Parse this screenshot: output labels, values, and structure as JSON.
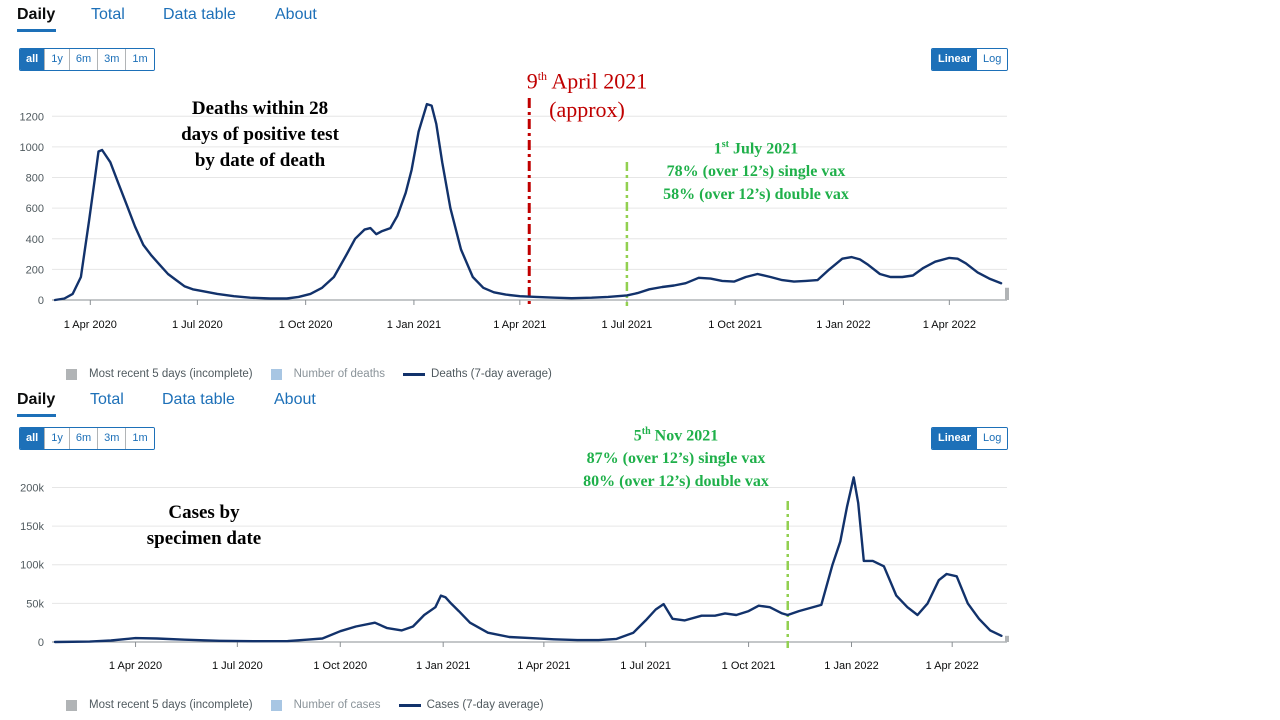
{
  "charts": [
    {
      "tabs": [
        "Daily",
        "Total",
        "Data table",
        "About"
      ],
      "active_tab": "Daily",
      "range_buttons": [
        "all",
        "1y",
        "6m",
        "3m",
        "1m"
      ],
      "active_range": "all",
      "scale_buttons": [
        "Linear",
        "Log"
      ],
      "active_scale": "Linear",
      "legend": [
        "Most recent 5 days (incomplete)",
        "Number of deaths",
        "Deaths (7-day average)"
      ],
      "annotation_title": [
        "Deaths within  28",
        "days of positive test",
        "by date of death"
      ],
      "annotation_red": {
        "day": "9",
        "suffix": "th",
        "rest": " April 2021",
        "line2": "(approx)"
      },
      "annotation_green": {
        "day": "1",
        "suffix": "st",
        "rest": " July 2021",
        "line2": "78% (over 12’s) single vax",
        "line3": "58% (over 12’s) double vax"
      }
    },
    {
      "tabs": [
        "Daily",
        "Total",
        "Data table",
        "About"
      ],
      "active_tab": "Daily",
      "range_buttons": [
        "all",
        "1y",
        "6m",
        "3m",
        "1m"
      ],
      "active_range": "all",
      "scale_buttons": [
        "Linear",
        "Log"
      ],
      "active_scale": "Linear",
      "legend": [
        "Most recent 5 days (incomplete)",
        "Number of cases",
        "Cases (7-day average)"
      ],
      "annotation_title": [
        "Cases by",
        "specimen date"
      ],
      "annotation_green": {
        "day": "5",
        "suffix": "th",
        "rest": " Nov 2021",
        "line2": "87% (over 12’s) single vax",
        "line3": "80% (over 12’s) double vax"
      }
    }
  ],
  "colors": {
    "line": "#12326b",
    "incomplete": "#b1b4b6",
    "number_bars": "#a8c6e3",
    "accent": "#1d70b8",
    "annotation_red": "#c00000",
    "annotation_green": "#1fb04a",
    "marker_green": "#92d050"
  },
  "chart_data": [
    {
      "type": "line",
      "ylim": [
        0,
        1300
      ],
      "yticks": [
        0,
        200,
        400,
        600,
        800,
        1000,
        1200
      ],
      "ytick_labels": [
        "0",
        "200",
        "400",
        "600",
        "800",
        "1000",
        "1200"
      ],
      "xticks": [
        "2020-04-01",
        "2020-07-01",
        "2020-10-01",
        "2021-01-01",
        "2021-04-01",
        "2021-07-01",
        "2021-10-01",
        "2022-01-01",
        "2022-04-01"
      ],
      "xtick_labels": [
        "1 Apr 2020",
        "1 Jul 2020",
        "1 Oct 2020",
        "1 Jan 2021",
        "1 Apr 2021",
        "1 Jul 2021",
        "1 Oct 2021",
        "1 Jan 2022",
        "1 Apr 2022"
      ],
      "xlim": [
        "2020-03-02",
        "2022-05-20"
      ],
      "marker_lines": [
        {
          "date": "2021-04-09",
          "color": "red"
        },
        {
          "date": "2021-07-01",
          "color": "green"
        }
      ],
      "series": [
        {
          "name": "Deaths (7-day average)",
          "x": [
            "2020-03-02",
            "2020-03-10",
            "2020-03-17",
            "2020-03-24",
            "2020-03-31",
            "2020-04-05",
            "2020-04-08",
            "2020-04-11",
            "2020-04-18",
            "2020-04-25",
            "2020-05-02",
            "2020-05-09",
            "2020-05-16",
            "2020-05-23",
            "2020-05-30",
            "2020-06-06",
            "2020-06-13",
            "2020-06-20",
            "2020-06-27",
            "2020-07-04",
            "2020-07-18",
            "2020-08-01",
            "2020-08-15",
            "2020-09-01",
            "2020-09-15",
            "2020-09-25",
            "2020-10-05",
            "2020-10-15",
            "2020-10-25",
            "2020-11-05",
            "2020-11-12",
            "2020-11-20",
            "2020-11-25",
            "2020-11-30",
            "2020-12-05",
            "2020-12-12",
            "2020-12-18",
            "2020-12-25",
            "2020-12-30",
            "2021-01-05",
            "2021-01-12",
            "2021-01-16",
            "2021-01-20",
            "2021-01-25",
            "2021-02-01",
            "2021-02-10",
            "2021-02-20",
            "2021-03-01",
            "2021-03-10",
            "2021-03-20",
            "2021-04-01",
            "2021-04-15",
            "2021-05-01",
            "2021-05-15",
            "2021-06-01",
            "2021-06-15",
            "2021-07-01",
            "2021-07-10",
            "2021-07-20",
            "2021-07-31",
            "2021-08-10",
            "2021-08-20",
            "2021-08-31",
            "2021-09-10",
            "2021-09-20",
            "2021-09-30",
            "2021-10-10",
            "2021-10-20",
            "2021-10-31",
            "2021-11-10",
            "2021-11-20",
            "2021-11-30",
            "2021-12-10",
            "2021-12-20",
            "2021-12-31",
            "2022-01-08",
            "2022-01-15",
            "2022-01-22",
            "2022-02-01",
            "2022-02-10",
            "2022-02-20",
            "2022-03-01",
            "2022-03-10",
            "2022-03-20",
            "2022-04-01",
            "2022-04-08",
            "2022-04-15",
            "2022-04-25",
            "2022-05-05",
            "2022-05-15"
          ],
          "y": [
            0,
            10,
            40,
            150,
            520,
            800,
            970,
            980,
            900,
            760,
            620,
            480,
            360,
            290,
            230,
            170,
            130,
            90,
            70,
            60,
            40,
            25,
            15,
            10,
            10,
            20,
            40,
            80,
            150,
            300,
            400,
            460,
            470,
            430,
            450,
            470,
            550,
            700,
            850,
            1100,
            1280,
            1270,
            1150,
            900,
            600,
            330,
            150,
            80,
            50,
            35,
            25,
            20,
            15,
            12,
            15,
            20,
            30,
            45,
            70,
            85,
            95,
            110,
            145,
            140,
            125,
            120,
            150,
            170,
            150,
            130,
            120,
            125,
            130,
            200,
            270,
            280,
            265,
            230,
            170,
            150,
            150,
            160,
            210,
            250,
            275,
            270,
            240,
            180,
            140,
            110
          ]
        }
      ],
      "incomplete": {
        "x": "2022-05-20",
        "value": 80
      }
    },
    {
      "type": "line",
      "ylim": [
        0,
        220000
      ],
      "yticks": [
        0,
        50000,
        100000,
        150000,
        200000
      ],
      "ytick_labels": [
        "0",
        "50k",
        "100k",
        "150k",
        "200k"
      ],
      "xticks": [
        "2020-04-01",
        "2020-07-01",
        "2020-10-01",
        "2021-01-01",
        "2021-04-01",
        "2021-07-01",
        "2021-10-01",
        "2022-01-01",
        "2022-04-01"
      ],
      "xtick_labels": [
        "1 Apr 2020",
        "1 Jul 2020",
        "1 Oct 2020",
        "1 Jan 2021",
        "1 Apr 2021",
        "1 Jul 2021",
        "1 Oct 2021",
        "1 Jan 2022",
        "1 Apr 2022"
      ],
      "xlim": [
        "2020-01-20",
        "2022-05-20"
      ],
      "marker_lines": [
        {
          "date": "2021-11-05",
          "color": "green"
        }
      ],
      "series": [
        {
          "name": "Cases (7-day average)",
          "x": [
            "2020-01-20",
            "2020-02-20",
            "2020-03-10",
            "2020-04-01",
            "2020-04-20",
            "2020-05-15",
            "2020-06-15",
            "2020-07-15",
            "2020-08-15",
            "2020-09-01",
            "2020-09-15",
            "2020-10-01",
            "2020-10-15",
            "2020-11-01",
            "2020-11-12",
            "2020-11-25",
            "2020-12-05",
            "2020-12-15",
            "2020-12-25",
            "2020-12-30",
            "2021-01-03",
            "2021-01-08",
            "2021-01-15",
            "2021-01-25",
            "2021-02-10",
            "2021-03-01",
            "2021-03-20",
            "2021-04-10",
            "2021-05-01",
            "2021-05-20",
            "2021-06-05",
            "2021-06-20",
            "2021-07-01",
            "2021-07-10",
            "2021-07-17",
            "2021-07-25",
            "2021-08-05",
            "2021-08-20",
            "2021-09-01",
            "2021-09-10",
            "2021-09-20",
            "2021-10-01",
            "2021-10-10",
            "2021-10-20",
            "2021-10-31",
            "2021-11-05",
            "2021-11-15",
            "2021-11-25",
            "2021-12-05",
            "2021-12-15",
            "2021-12-22",
            "2021-12-28",
            "2022-01-03",
            "2022-01-07",
            "2022-01-12",
            "2022-01-20",
            "2022-01-30",
            "2022-02-10",
            "2022-02-20",
            "2022-03-01",
            "2022-03-10",
            "2022-03-20",
            "2022-03-27",
            "2022-04-05",
            "2022-04-15",
            "2022-04-25",
            "2022-05-05",
            "2022-05-15"
          ],
          "y": [
            0,
            500,
            2000,
            5000,
            4500,
            3000,
            1500,
            1000,
            1200,
            3000,
            4500,
            14000,
            20000,
            25000,
            18000,
            15000,
            20000,
            35000,
            45000,
            60000,
            58000,
            50000,
            40000,
            25000,
            12000,
            6500,
            5000,
            3500,
            2500,
            2500,
            4000,
            12000,
            28000,
            42000,
            49000,
            30000,
            28000,
            34000,
            34000,
            37000,
            35000,
            40000,
            47000,
            45000,
            37000,
            35000,
            40000,
            44000,
            48000,
            100000,
            130000,
            175000,
            213000,
            180000,
            105000,
            105000,
            98000,
            60000,
            45000,
            35000,
            50000,
            80000,
            88000,
            85000,
            50000,
            30000,
            15000,
            8000
          ]
        }
      ],
      "incomplete": {
        "x": "2022-05-20",
        "value": 8000
      }
    }
  ]
}
